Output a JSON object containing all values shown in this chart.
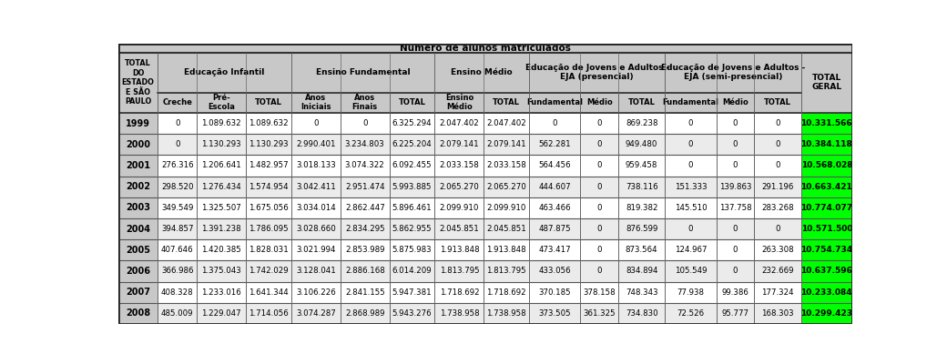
{
  "title": "Número de alunos matriculados",
  "header2": [
    "Creche",
    "Pré-\nEscola",
    "TOTAL",
    "Anos\nIniciais",
    "Anos\nFinais",
    "TOTAL",
    "Ensino\nMédio",
    "TOTAL",
    "Fundamental",
    "Médio",
    "TOTAL",
    "Fundamental",
    "Médio",
    "TOTAL"
  ],
  "years": [
    "1999",
    "2000",
    "2001",
    "2002",
    "2003",
    "2004",
    "2005",
    "2006",
    "2007",
    "2008"
  ],
  "rows": [
    [
      "0",
      "1.089.632",
      "1.089.632",
      "0",
      "0",
      "6.325.294",
      "2.047.402",
      "2.047.402",
      "0",
      "0",
      "869.238",
      "0",
      "0",
      "0",
      "10.331.566"
    ],
    [
      "0",
      "1.130.293",
      "1.130.293",
      "2.990.401",
      "3.234.803",
      "6.225.204",
      "2.079.141",
      "2.079.141",
      "562.281",
      "0",
      "949.480",
      "0",
      "0",
      "0",
      "10.384.118"
    ],
    [
      "276.316",
      "1.206.641",
      "1.482.957",
      "3.018.133",
      "3.074.322",
      "6.092.455",
      "2.033.158",
      "2.033.158",
      "564.456",
      "0",
      "959.458",
      "0",
      "0",
      "0",
      "10.568.028"
    ],
    [
      "298.520",
      "1.276.434",
      "1.574.954",
      "3.042.411",
      "2.951.474",
      "5.993.885",
      "2.065.270",
      "2.065.270",
      "444.607",
      "0",
      "738.116",
      "151.333",
      "139.863",
      "291.196",
      "10.663.421"
    ],
    [
      "349.549",
      "1.325.507",
      "1.675.056",
      "3.034.014",
      "2.862.447",
      "5.896.461",
      "2.099.910",
      "2.099.910",
      "463.466",
      "0",
      "819.382",
      "145.510",
      "137.758",
      "283.268",
      "10.774.077"
    ],
    [
      "394.857",
      "1.391.238",
      "1.786.095",
      "3.028.660",
      "2.834.295",
      "5.862.955",
      "2.045.851",
      "2.045.851",
      "487.875",
      "0",
      "876.599",
      "0",
      "0",
      "0",
      "10.571.500"
    ],
    [
      "407.646",
      "1.420.385",
      "1.828.031",
      "3.021.994",
      "2.853.989",
      "5.875.983",
      "1.913.848",
      "1.913.848",
      "473.417",
      "0",
      "873.564",
      "124.967",
      "0",
      "263.308",
      "10.754.734"
    ],
    [
      "366.986",
      "1.375.043",
      "1.742.029",
      "3.128.041",
      "2.886.168",
      "6.014.209",
      "1.813.795",
      "1.813.795",
      "433.056",
      "0",
      "834.894",
      "105.549",
      "0",
      "232.669",
      "10.637.596"
    ],
    [
      "408.328",
      "1.233.016",
      "1.641.344",
      "3.106.226",
      "2.841.155",
      "5.947.381",
      "1.718.692",
      "1.718.692",
      "370.185",
      "378.158",
      "748.343",
      "77.938",
      "99.386",
      "177.324",
      "10.233.084"
    ],
    [
      "485.009",
      "1.229.047",
      "1.714.056",
      "3.074.287",
      "2.868.989",
      "5.943.276",
      "1.738.958",
      "1.738.958",
      "373.505",
      "361.325",
      "734.830",
      "72.526",
      "95.777",
      "168.303",
      "10.299.423"
    ]
  ],
  "groups": [
    {
      "label": "Educação Infantil",
      "start": 1,
      "end": 3
    },
    {
      "label": "Ensino Fundamental",
      "start": 4,
      "end": 6
    },
    {
      "label": "Ensino Médio",
      "start": 7,
      "end": 8
    },
    {
      "label": "Educação de Jovens e Adultos -\nEJA (presencial)",
      "start": 9,
      "end": 11
    },
    {
      "label": "Educação de Jovens e Adultos -\nEJA (semi-presencial)",
      "start": 12,
      "end": 14
    }
  ],
  "col_widths_raw": [
    52,
    52,
    65,
    60,
    65,
    65,
    60,
    65,
    60,
    68,
    50,
    62,
    68,
    50,
    62,
    68
  ],
  "row_heights_raw": [
    12,
    55,
    28,
    29,
    29,
    29,
    29,
    29,
    29,
    29,
    29,
    29,
    29
  ],
  "bg_header": "#c8c8c8",
  "bg_white": "#ffffff",
  "bg_alt": "#ebebeb",
  "bg_total_geral": "#00ff00",
  "bg_year": "#c8c8c8",
  "title_bg": "#c8c8c8",
  "border_dark": "#555555",
  "border_light": "#888888"
}
